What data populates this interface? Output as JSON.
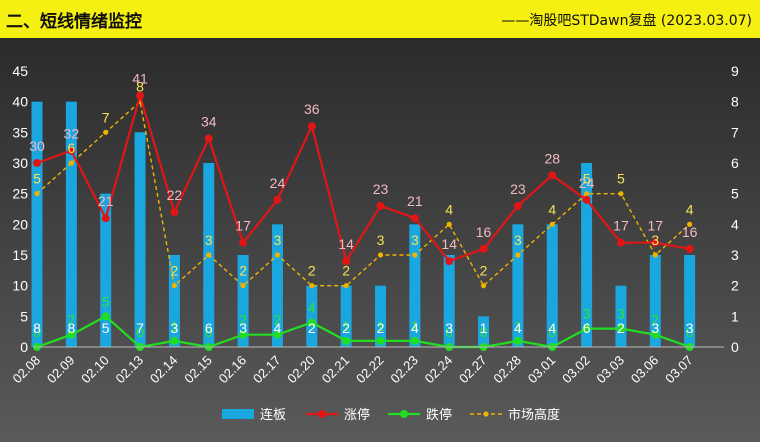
{
  "header": {
    "title": "二、短线情绪监控",
    "source": "——淘股吧STDawn复盘 (2023.03.07)"
  },
  "colors": {
    "header_bg": "#f5ef12",
    "plot_bg_top": "#2b2b2b",
    "plot_bg_bottom": "#5a5a5a",
    "lianban": "#1aa7e0",
    "zhangting": "#e01616",
    "dieting": "#22dd22",
    "height": "#f0b400",
    "label_zhangting": "#f4b9c2",
    "label_lianban": "#ffffff",
    "label_dieting": "#33e033",
    "label_height": "#f5e35a"
  },
  "chart_data": {
    "type": "bar+line",
    "categories": [
      "02.08",
      "02.09",
      "02.10",
      "02.13",
      "02.14",
      "02.15",
      "02.16",
      "02.17",
      "02.20",
      "02.21",
      "02.22",
      "02.23",
      "02.24",
      "02.27",
      "02.28",
      "03.01",
      "03.02",
      "03.03",
      "03.06",
      "03.07"
    ],
    "y_left": {
      "min": 0,
      "max": 45,
      "ticks": [
        0,
        5,
        10,
        15,
        20,
        25,
        30,
        35,
        40,
        45
      ]
    },
    "y_right": {
      "min": 0,
      "max": 9,
      "ticks": [
        0,
        1,
        2,
        3,
        4,
        5,
        6,
        7,
        8,
        9
      ]
    },
    "grid": false,
    "legend_position": "bottom",
    "series": [
      {
        "name": "连板",
        "type": "bar",
        "axis": "left",
        "values": [
          8,
          8,
          5,
          7,
          3,
          6,
          3,
          4,
          2,
          2,
          2,
          4,
          3,
          1,
          4,
          4,
          6,
          2,
          3,
          3
        ]
      },
      {
        "name": "涨停",
        "type": "line",
        "axis": "left",
        "values": [
          30,
          32,
          21,
          41,
          22,
          34,
          17,
          24,
          36,
          14,
          23,
          21,
          14,
          16,
          23,
          28,
          24,
          17,
          17,
          16
        ]
      },
      {
        "name": "跌停",
        "type": "line",
        "axis": "left",
        "values": [
          0,
          2,
          5,
          0,
          1,
          0,
          2,
          2,
          4,
          1,
          1,
          1,
          0,
          0,
          1,
          0,
          3,
          3,
          2,
          0
        ]
      },
      {
        "name": "市场高度",
        "type": "line",
        "axis": "right",
        "values": [
          5,
          6,
          7,
          8,
          2,
          3,
          2,
          3,
          2,
          2,
          3,
          3,
          4,
          2,
          3,
          4,
          5,
          5,
          3,
          4
        ]
      }
    ]
  }
}
